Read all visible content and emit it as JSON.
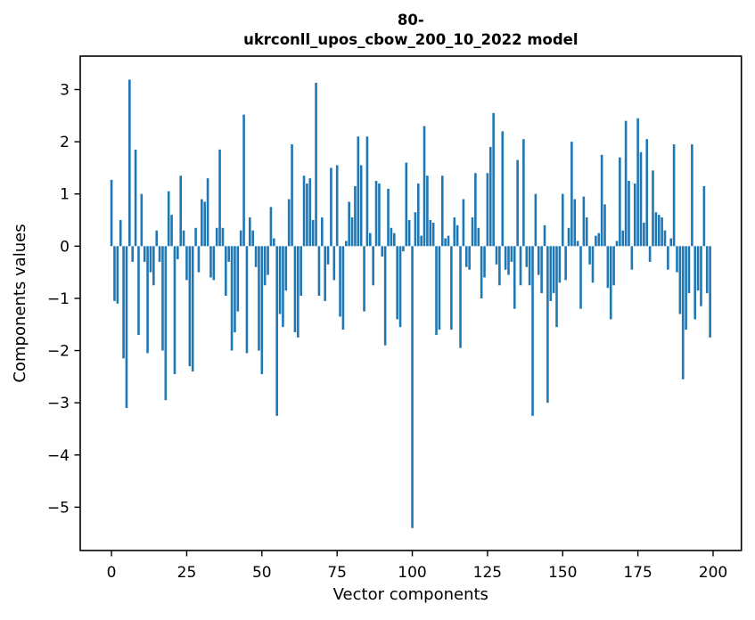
{
  "figure": {
    "background": "#ffffff"
  },
  "chart_data": {
    "type": "bar",
    "title_line1": "80-",
    "title_line2": "ukrconll_upos_cbow_200_10_2022 model",
    "xlabel": "Vector components",
    "ylabel": "Components values",
    "bar_color": "#1f77b4",
    "axis_color": "#000000",
    "grid": "off",
    "legend": "none",
    "xlim": [
      -10.4,
      209.4
    ],
    "ylim": [
      -5.83,
      3.64
    ],
    "x_ticks": [
      0,
      25,
      50,
      75,
      100,
      125,
      150,
      175,
      200
    ],
    "y_ticks": [
      3,
      2,
      1,
      0,
      -1,
      -2,
      -3,
      -4,
      -5
    ],
    "categories_note": "x = component index 0..199",
    "values": [
      1.27,
      -1.05,
      -1.1,
      0.5,
      -2.15,
      -3.1,
      3.19,
      -0.3,
      1.85,
      -1.7,
      1.0,
      -0.3,
      -2.05,
      -0.5,
      -0.75,
      0.3,
      -0.3,
      -2.0,
      -2.95,
      1.05,
      0.6,
      -2.45,
      -0.25,
      1.35,
      0.3,
      -0.65,
      -2.3,
      -2.4,
      0.35,
      -0.5,
      0.9,
      0.85,
      1.3,
      -0.6,
      -0.65,
      0.35,
      1.85,
      0.35,
      -0.95,
      -0.3,
      -2.0,
      -1.65,
      -1.25,
      0.3,
      2.52,
      -2.05,
      0.55,
      0.3,
      -0.4,
      -2.0,
      -2.45,
      -0.75,
      -0.55,
      0.75,
      0.15,
      -3.25,
      -1.3,
      -1.55,
      -0.85,
      0.9,
      1.95,
      -1.65,
      -1.75,
      -0.95,
      1.35,
      1.2,
      1.3,
      0.5,
      3.13,
      -0.95,
      0.55,
      -1.05,
      -0.35,
      1.5,
      -0.65,
      1.55,
      -1.35,
      -1.6,
      0.1,
      0.85,
      0.55,
      1.15,
      2.1,
      1.55,
      -1.25,
      2.1,
      0.25,
      -0.75,
      1.25,
      1.2,
      -0.2,
      -1.9,
      1.1,
      0.35,
      0.25,
      -1.4,
      -1.55,
      -0.1,
      1.6,
      0.5,
      -5.4,
      0.65,
      1.2,
      0.2,
      2.3,
      1.35,
      0.5,
      0.45,
      -1.7,
      -1.6,
      1.35,
      0.15,
      0.2,
      -1.6,
      0.55,
      0.4,
      -1.95,
      0.9,
      -0.4,
      -0.45,
      0.55,
      1.4,
      0.35,
      -1.0,
      -0.6,
      1.4,
      1.9,
      2.55,
      -0.35,
      -0.75,
      2.2,
      -0.45,
      -0.55,
      -0.3,
      -1.2,
      1.65,
      -0.75,
      2.05,
      -0.4,
      -0.75,
      -3.25,
      1.0,
      -0.55,
      -0.9,
      0.4,
      -3.0,
      -1.05,
      -0.9,
      -1.55,
      -0.7,
      1.0,
      -0.65,
      0.35,
      2.0,
      0.9,
      0.1,
      -1.2,
      0.95,
      0.55,
      -0.35,
      -0.7,
      0.2,
      0.25,
      1.75,
      0.8,
      -0.8,
      -1.4,
      -0.75,
      0.1,
      1.7,
      0.3,
      2.4,
      1.25,
      -0.45,
      1.2,
      2.45,
      1.8,
      0.45,
      2.05,
      -0.3,
      1.45,
      0.65,
      0.6,
      0.55,
      0.3,
      -0.45,
      0.15,
      1.95,
      -0.5,
      -1.3,
      -2.55,
      -1.6,
      -0.9,
      1.95,
      -1.4,
      -0.85,
      -1.15,
      1.15,
      -0.9,
      -1.75
    ]
  }
}
